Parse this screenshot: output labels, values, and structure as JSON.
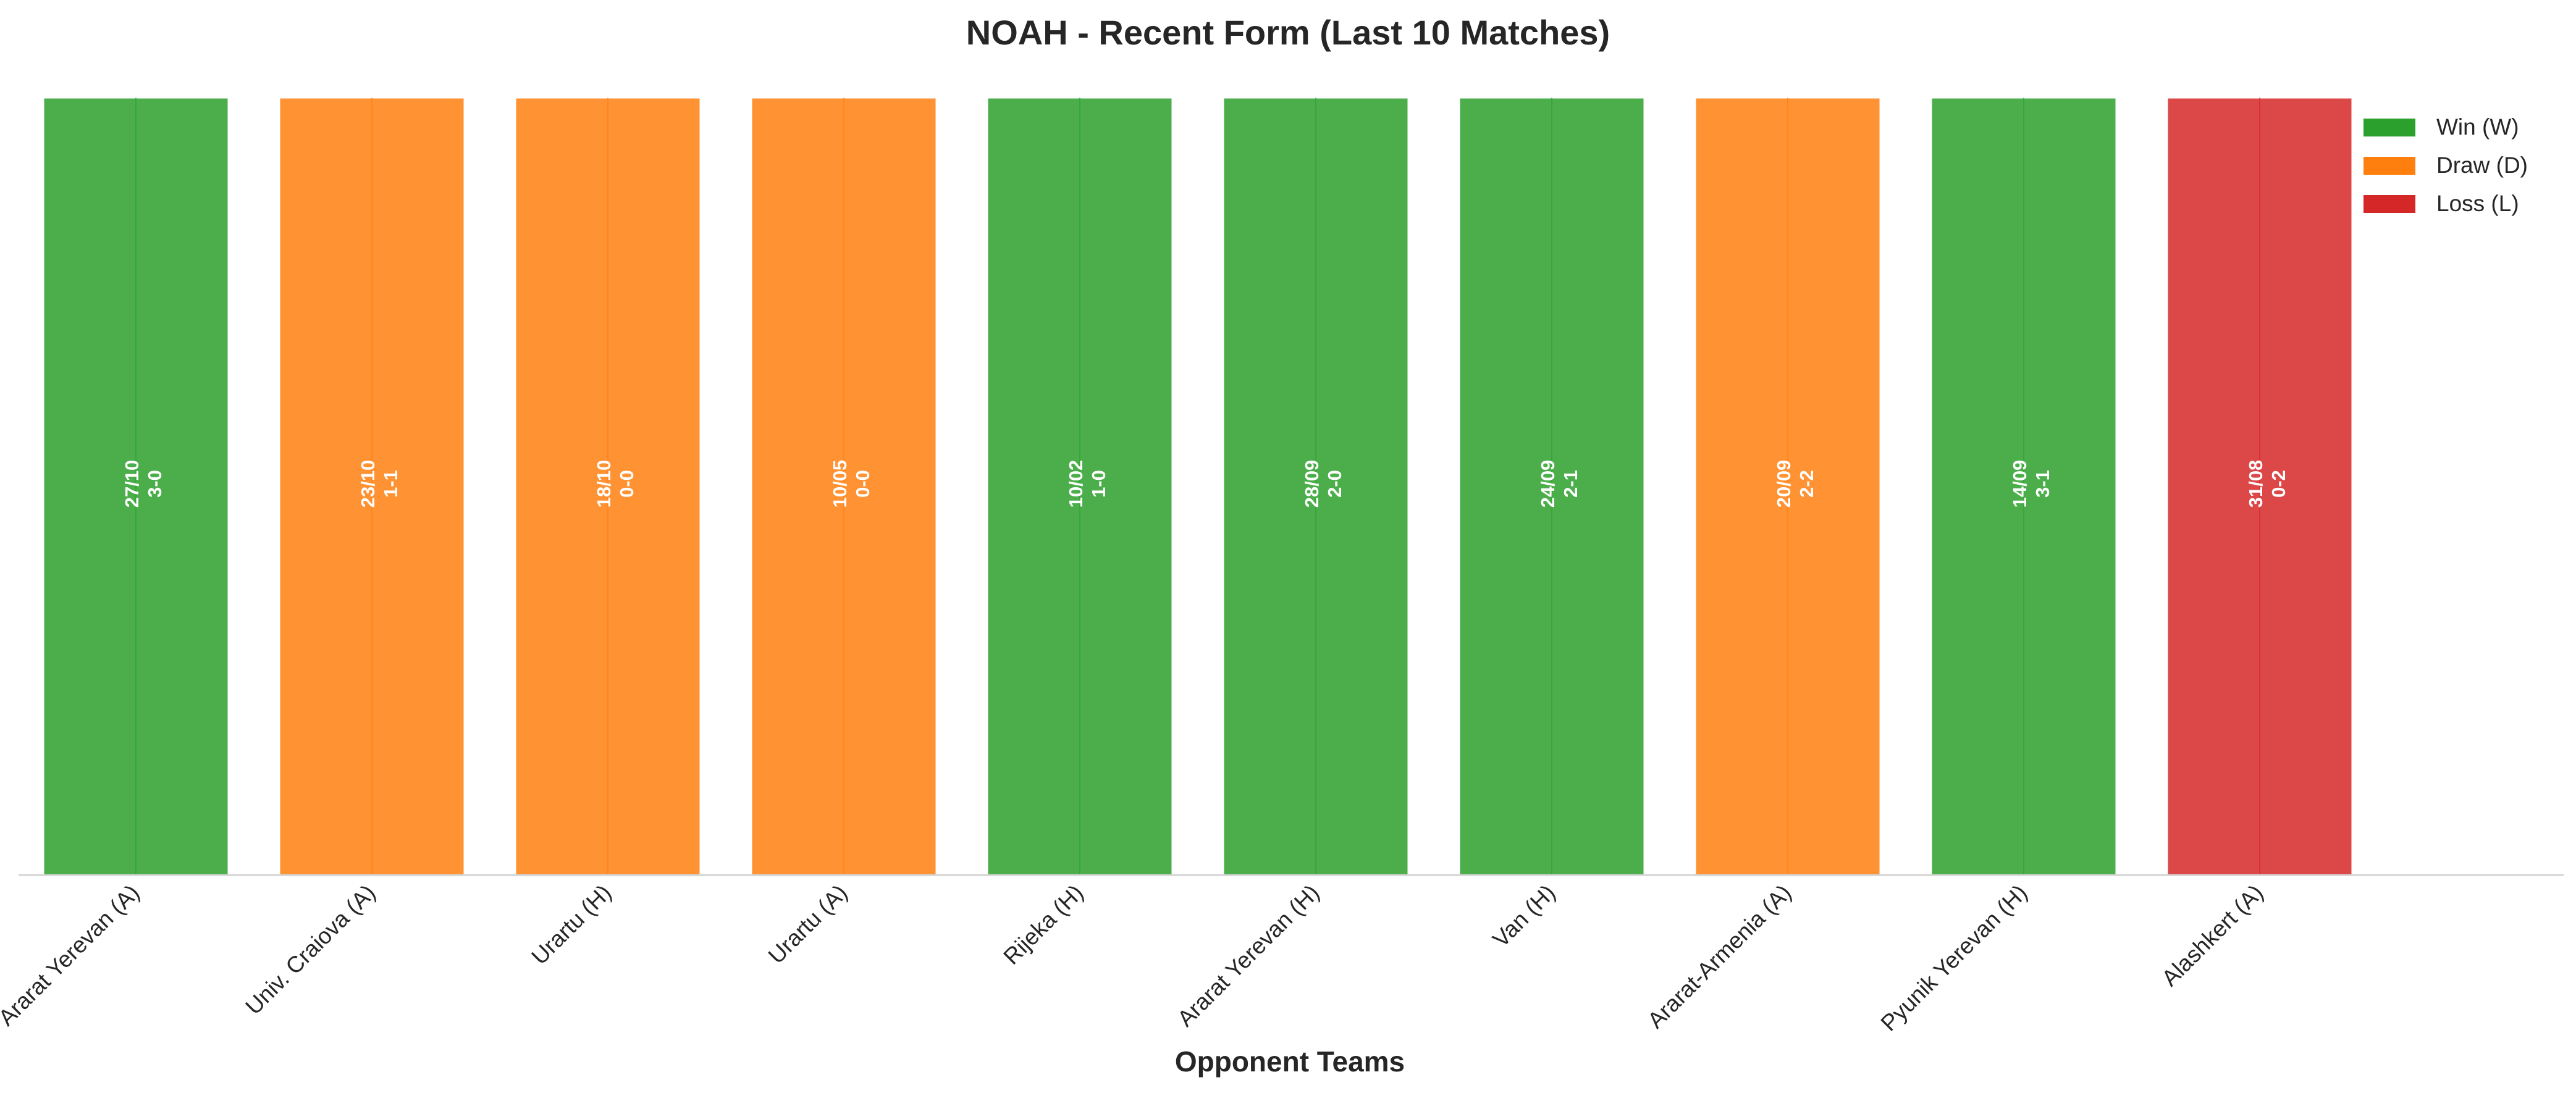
{
  "chart_data": {
    "type": "bar",
    "title": "NOAH - Recent Form (Last 10 Matches)",
    "xlabel": "Opponent Teams",
    "ylabel": "",
    "categories": [
      "Ararat Yerevan (A)",
      "Univ. Craiova (A)",
      "Urartu (H)",
      "Urartu (A)",
      "Rijeka (H)",
      "Ararat Yerevan (H)",
      "Van (H)",
      "Ararat-Armenia (A)",
      "Pyunik Yerevan (H)",
      "Alashkert (A)"
    ],
    "values": [
      1,
      1,
      1,
      1,
      1,
      1,
      1,
      1,
      1,
      1
    ],
    "results": [
      "W",
      "D",
      "D",
      "D",
      "W",
      "W",
      "W",
      "D",
      "W",
      "L"
    ],
    "dates": [
      "27/10",
      "23/10",
      "18/10",
      "10/05",
      "10/02",
      "28/09",
      "24/09",
      "20/09",
      "14/09",
      "31/08"
    ],
    "scores": [
      "3-0",
      "1-1",
      "0-0",
      "0-0",
      "1-0",
      "2-0",
      "2-1",
      "2-2",
      "3-1",
      "0-2"
    ],
    "ylim": [
      0,
      1
    ],
    "grid": false,
    "legend_position": "top-right",
    "legend": [
      {
        "key": "W",
        "label": "Win (W)",
        "color": "#2ca02c"
      },
      {
        "key": "D",
        "label": "Draw (D)",
        "color": "#ff7f0e"
      },
      {
        "key": "L",
        "label": "Loss (L)",
        "color": "#d62728"
      }
    ]
  }
}
